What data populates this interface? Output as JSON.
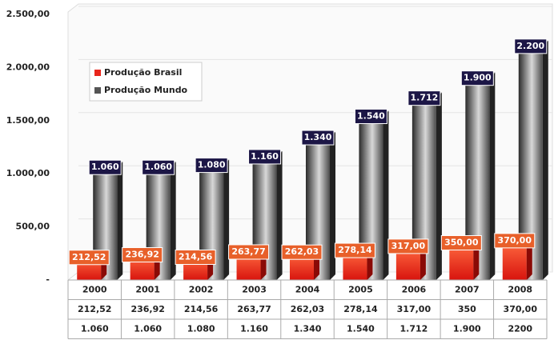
{
  "chart_data": {
    "type": "bar3d",
    "categories": [
      "2000",
      "2001",
      "2002",
      "2003",
      "2004",
      "2005",
      "2006",
      "2007",
      "2008"
    ],
    "series": [
      {
        "name": "Produção Brasil",
        "color": "#e8261c",
        "values": [
          212.52,
          236.92,
          214.56,
          263.77,
          262.03,
          278.14,
          317.0,
          350.0,
          370.0
        ],
        "value_labels": [
          "212,52",
          "236,92",
          "214,56",
          "263,77",
          "262,03",
          "278,14",
          "317,00",
          "350,00",
          "370,00"
        ],
        "table_labels": [
          "212,52",
          "236,92",
          "214,56",
          "263,77",
          "262,03",
          "278,14",
          "317,00",
          "350",
          "370,00"
        ]
      },
      {
        "name": "Produção Mundo",
        "color": "#555555",
        "values": [
          1060,
          1060,
          1080,
          1160,
          1340,
          1540,
          1712,
          1900,
          2200
        ],
        "value_labels": [
          "1.060",
          "1.060",
          "1.080",
          "1.160",
          "1.340",
          "1.540",
          "1.712",
          "1.900",
          "2.200"
        ],
        "table_labels": [
          "1.060",
          "1.060",
          "1.080",
          "1.160",
          "1.340",
          "1.540",
          "1.712",
          "1.900",
          "2200"
        ]
      }
    ],
    "ylim": [
      0,
      2500
    ],
    "yticks": [
      {
        "value": 0,
        "label": "-"
      },
      {
        "value": 500,
        "label": "500,00"
      },
      {
        "value": 1000,
        "label": "1.000,00"
      },
      {
        "value": 1500,
        "label": "1.500,00"
      },
      {
        "value": 2000,
        "label": "2.000,00"
      },
      {
        "value": 2500,
        "label": "2.500,00"
      }
    ],
    "grid": true,
    "legend": "top-left"
  }
}
